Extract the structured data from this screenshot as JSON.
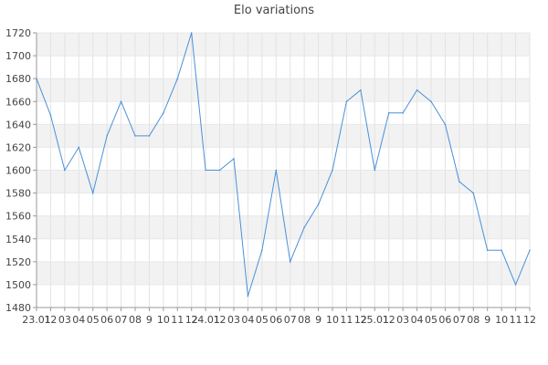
{
  "chart_data": {
    "type": "line",
    "title": "Elo variations",
    "xlabel": "",
    "ylabel": "",
    "ylim": [
      1480,
      1720
    ],
    "yticks": [
      1480,
      1500,
      1520,
      1540,
      1560,
      1580,
      1600,
      1620,
      1640,
      1660,
      1680,
      1700,
      1720
    ],
    "x_tick_labels": [
      "23.01",
      "12",
      "03",
      "04",
      "05",
      "06",
      "07",
      "08",
      "9",
      "10",
      "11",
      "12",
      "24.01",
      "12",
      "03",
      "04",
      "05",
      "06",
      "07",
      "08",
      "9",
      "10",
      "11",
      "12",
      "25.01",
      "12",
      "03",
      "04",
      "05",
      "06",
      "07",
      "08",
      "9",
      "10",
      "11",
      "12"
    ],
    "grid": true,
    "line_color": "#4a90d9",
    "band_color": "#f2f2f2",
    "series": [
      {
        "values": [
          1680,
          1648,
          1600,
          1620,
          1580,
          1630,
          1660,
          1630,
          1630,
          1650,
          1680,
          1720,
          1600,
          1600,
          1610,
          1490,
          1530,
          1600,
          1520,
          1550,
          1570,
          1600,
          1660,
          1670,
          1600,
          1650,
          1650,
          1670,
          1660,
          1640,
          1590,
          1580,
          1530,
          1530,
          1500,
          1530
        ]
      }
    ]
  }
}
